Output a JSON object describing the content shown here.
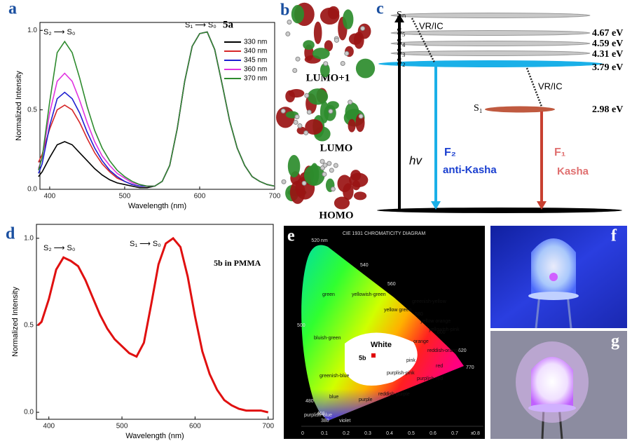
{
  "panel_labels": [
    "a",
    "b",
    "c",
    "d",
    "e",
    "f",
    "g"
  ],
  "chart_data": [
    {
      "type": "line",
      "xlabel": "Wavelength (nm)",
      "ylabel": "Normalized Intensity",
      "annotations": [
        "S₂ ⟶ S₀",
        "S₁ ⟶ S₀",
        "5a"
      ],
      "x": [
        385,
        390,
        400,
        410,
        420,
        430,
        440,
        450,
        460,
        470,
        480,
        490,
        500,
        510,
        520,
        530,
        540,
        550,
        560,
        570,
        580,
        590,
        600,
        610,
        620,
        630,
        640,
        650,
        660,
        670,
        680,
        690,
        700
      ],
      "xlim": [
        387,
        700
      ],
      "xticks": [
        400,
        500,
        600,
        700
      ],
      "ylim": [
        0,
        1.05
      ],
      "yticks": [
        {
          "value": 0,
          "label": "0.0"
        },
        0.5,
        {
          "value": 1,
          "label": "1.0"
        }
      ],
      "series": [
        {
          "name": "330 nm",
          "color": "#000000",
          "values": [
            0.08,
            0.11,
            0.2,
            0.28,
            0.3,
            0.28,
            0.23,
            0.18,
            0.13,
            0.09,
            0.06,
            0.04,
            0.03,
            0.02,
            0.01,
            0.01,
            0.02,
            0.05,
            0.15,
            0.38,
            0.68,
            0.9,
            0.98,
            0.99,
            0.88,
            0.66,
            0.43,
            0.26,
            0.15,
            0.08,
            0.05,
            0.03,
            0.02
          ]
        },
        {
          "name": "340 nm",
          "color": "#d62728",
          "values": [
            0.17,
            0.22,
            0.38,
            0.5,
            0.53,
            0.5,
            0.42,
            0.32,
            0.23,
            0.16,
            0.11,
            0.07,
            0.05,
            0.03,
            0.02,
            0.02,
            0.02,
            0.05,
            0.15,
            0.38,
            0.68,
            0.9,
            0.98,
            0.99,
            0.88,
            0.66,
            0.43,
            0.26,
            0.15,
            0.08,
            0.05,
            0.03,
            0.02
          ]
        },
        {
          "name": "345 nm",
          "color": "#1f1fd0",
          "values": [
            0.1,
            0.16,
            0.4,
            0.57,
            0.61,
            0.57,
            0.48,
            0.36,
            0.26,
            0.18,
            0.12,
            0.08,
            0.05,
            0.03,
            0.02,
            0.02,
            0.02,
            0.05,
            0.15,
            0.38,
            0.68,
            0.9,
            0.98,
            0.99,
            0.88,
            0.66,
            0.43,
            0.26,
            0.15,
            0.08,
            0.05,
            0.03,
            0.02
          ]
        },
        {
          "name": "360 nm",
          "color": "#e033e0",
          "values": [
            0.13,
            0.2,
            0.48,
            0.68,
            0.73,
            0.68,
            0.56,
            0.42,
            0.3,
            0.21,
            0.15,
            0.1,
            0.07,
            0.04,
            0.03,
            0.02,
            0.02,
            0.05,
            0.15,
            0.38,
            0.68,
            0.9,
            0.98,
            0.99,
            0.88,
            0.66,
            0.43,
            0.26,
            0.15,
            0.08,
            0.05,
            0.03,
            0.02
          ]
        },
        {
          "name": "370 nm",
          "color": "#2e8b2e",
          "values": [
            0.12,
            0.2,
            0.55,
            0.86,
            0.93,
            0.86,
            0.7,
            0.52,
            0.37,
            0.26,
            0.18,
            0.12,
            0.08,
            0.05,
            0.03,
            0.02,
            0.02,
            0.05,
            0.15,
            0.38,
            0.68,
            0.9,
            0.98,
            0.99,
            0.88,
            0.66,
            0.43,
            0.26,
            0.15,
            0.08,
            0.05,
            0.03,
            0.02
          ]
        }
      ]
    },
    {
      "type": "line",
      "xlabel": "Wavelength (nm)",
      "ylabel": "Normalized Intensity",
      "annotations": [
        "S₂ ⟶ S₀",
        "S₁ ⟶ S₀",
        "5b in PMMA"
      ],
      "x": [
        385,
        390,
        400,
        410,
        420,
        430,
        440,
        450,
        460,
        470,
        480,
        490,
        500,
        510,
        520,
        530,
        540,
        550,
        560,
        570,
        580,
        590,
        600,
        610,
        620,
        630,
        640,
        650,
        660,
        670,
        680,
        690,
        700
      ],
      "xlim": [
        383,
        707
      ],
      "xticks": [
        400,
        500,
        600,
        700
      ],
      "ylim": [
        -0.04,
        1.08
      ],
      "yticks": [
        {
          "value": 0,
          "label": "0.0"
        },
        0.5,
        {
          "value": 1,
          "label": "1.0"
        }
      ],
      "series": [
        {
          "name": "5b",
          "color": "#e01010",
          "values": [
            0.5,
            0.52,
            0.65,
            0.82,
            0.89,
            0.87,
            0.84,
            0.76,
            0.66,
            0.56,
            0.48,
            0.42,
            0.38,
            0.34,
            0.32,
            0.4,
            0.62,
            0.85,
            0.97,
            1.0,
            0.95,
            0.78,
            0.55,
            0.35,
            0.22,
            0.13,
            0.07,
            0.04,
            0.02,
            0.01,
            0.01,
            0.01,
            0
          ]
        }
      ]
    }
  ],
  "orbitals": [
    "LUMO+1",
    "LUMO",
    "HOMO"
  ],
  "energy_diagram": {
    "levels": [
      {
        "name": "Sₙ"
      },
      {
        "name": "S₅",
        "energy": "4.67 eV"
      },
      {
        "name": "S₄",
        "energy": "4.59 eV"
      },
      {
        "name": "S₃",
        "energy": "4.31 eV"
      },
      {
        "name": "S₂",
        "energy": "3.79 eV"
      },
      {
        "name": "S₁",
        "energy": "2.98 eV"
      }
    ],
    "relaxation": [
      "VR/IC",
      "VR/IC"
    ],
    "excitation": "hv",
    "emissions": [
      {
        "name": "F₂",
        "rule": "anti-Kasha"
      },
      {
        "name": "F₁",
        "rule": "Kasha"
      }
    ]
  },
  "cie": {
    "title": "CIE 1931 CHROMATICITY DIAGRAM",
    "wavelengths": [
      "520 nm",
      "540",
      "560",
      "580",
      "600",
      "620",
      "770",
      "500",
      "480",
      "460",
      "380"
    ],
    "regions": [
      "green",
      "yellowish-green",
      "yellow green",
      "greenish-yellow",
      "yellow orange",
      "yellowish-pink",
      "orange",
      "reddish-orange",
      "red",
      "pink",
      "purplish-pink",
      "purplish-red",
      "reddish-purple",
      "purple",
      "bluish-green",
      "greenish-blue",
      "blue",
      "purplish-blue",
      "violet"
    ],
    "white": "White",
    "sample": "5b",
    "xticks": [
      "0",
      "0.1",
      "0.2",
      "0.3",
      "0.4",
      "0.5",
      "0.6",
      "0.7",
      "0.8"
    ],
    "xlabel": "x"
  }
}
